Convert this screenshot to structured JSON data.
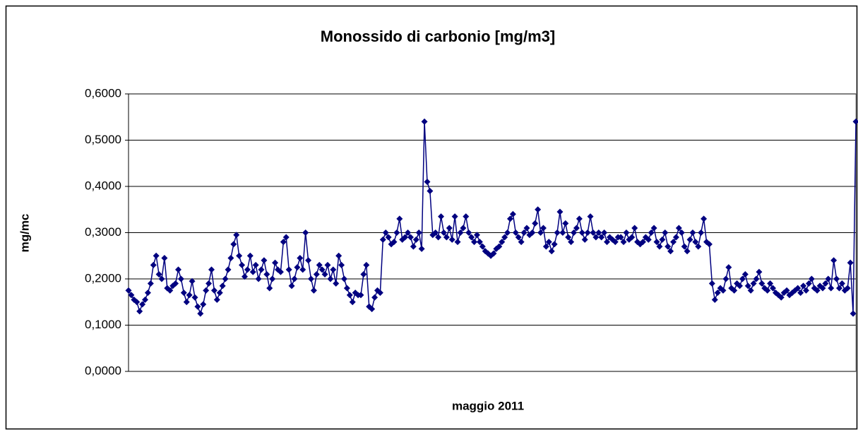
{
  "chart_data": {
    "type": "line",
    "title": "Monossido di carbonio [mg/m3]",
    "y_label": "mg/mc",
    "x_label": "maggio 2011",
    "ylim": [
      0,
      0.6
    ],
    "yticks": [
      {
        "value": 0,
        "label": "0,0000"
      },
      {
        "value": 0.1,
        "label": "0,1000"
      },
      {
        "value": 0.2,
        "label": "0,2000"
      },
      {
        "value": 0.3,
        "label": "0,3000"
      },
      {
        "value": 0.4,
        "label": "0,4000"
      },
      {
        "value": 0.5,
        "label": "0,5000"
      },
      {
        "value": 0.6,
        "label": "0,6000"
      }
    ],
    "grid": true,
    "color": "#000080",
    "values": [
      0.175,
      0.165,
      0.155,
      0.15,
      0.13,
      0.145,
      0.155,
      0.17,
      0.19,
      0.23,
      0.25,
      0.21,
      0.2,
      0.245,
      0.18,
      0.175,
      0.185,
      0.19,
      0.22,
      0.2,
      0.17,
      0.15,
      0.165,
      0.195,
      0.16,
      0.14,
      0.125,
      0.145,
      0.175,
      0.19,
      0.22,
      0.175,
      0.155,
      0.17,
      0.185,
      0.2,
      0.22,
      0.245,
      0.275,
      0.295,
      0.25,
      0.23,
      0.205,
      0.22,
      0.25,
      0.215,
      0.23,
      0.2,
      0.22,
      0.24,
      0.21,
      0.18,
      0.2,
      0.235,
      0.22,
      0.215,
      0.28,
      0.29,
      0.22,
      0.185,
      0.2,
      0.225,
      0.245,
      0.22,
      0.3,
      0.24,
      0.2,
      0.175,
      0.21,
      0.23,
      0.22,
      0.21,
      0.23,
      0.2,
      0.22,
      0.19,
      0.25,
      0.23,
      0.2,
      0.18,
      0.165,
      0.15,
      0.17,
      0.165,
      0.165,
      0.21,
      0.23,
      0.14,
      0.135,
      0.16,
      0.175,
      0.17,
      0.285,
      0.3,
      0.29,
      0.275,
      0.28,
      0.3,
      0.33,
      0.285,
      0.29,
      0.3,
      0.29,
      0.27,
      0.285,
      0.3,
      0.265,
      0.54,
      0.41,
      0.39,
      0.295,
      0.3,
      0.29,
      0.335,
      0.3,
      0.29,
      0.31,
      0.285,
      0.335,
      0.28,
      0.3,
      0.31,
      0.335,
      0.3,
      0.29,
      0.28,
      0.295,
      0.28,
      0.27,
      0.26,
      0.255,
      0.25,
      0.255,
      0.265,
      0.27,
      0.28,
      0.29,
      0.3,
      0.33,
      0.34,
      0.3,
      0.29,
      0.28,
      0.3,
      0.31,
      0.295,
      0.3,
      0.32,
      0.35,
      0.3,
      0.31,
      0.27,
      0.28,
      0.26,
      0.275,
      0.3,
      0.345,
      0.3,
      0.32,
      0.29,
      0.28,
      0.3,
      0.31,
      0.33,
      0.3,
      0.285,
      0.3,
      0.335,
      0.3,
      0.29,
      0.3,
      0.29,
      0.3,
      0.28,
      0.29,
      0.285,
      0.28,
      0.29,
      0.29,
      0.28,
      0.3,
      0.285,
      0.29,
      0.31,
      0.28,
      0.275,
      0.28,
      0.29,
      0.285,
      0.3,
      0.31,
      0.28,
      0.27,
      0.285,
      0.3,
      0.27,
      0.26,
      0.28,
      0.29,
      0.31,
      0.3,
      0.27,
      0.26,
      0.285,
      0.3,
      0.28,
      0.27,
      0.3,
      0.33,
      0.28,
      0.275,
      0.19,
      0.155,
      0.17,
      0.18,
      0.175,
      0.2,
      0.225,
      0.18,
      0.175,
      0.19,
      0.185,
      0.2,
      0.21,
      0.185,
      0.175,
      0.19,
      0.2,
      0.215,
      0.19,
      0.18,
      0.175,
      0.19,
      0.18,
      0.17,
      0.165,
      0.16,
      0.17,
      0.175,
      0.165,
      0.17,
      0.175,
      0.18,
      0.17,
      0.185,
      0.175,
      0.19,
      0.2,
      0.18,
      0.175,
      0.185,
      0.18,
      0.19,
      0.2,
      0.18,
      0.24,
      0.2,
      0.18,
      0.19,
      0.175,
      0.18,
      0.235,
      0.125,
      0.54
    ]
  }
}
